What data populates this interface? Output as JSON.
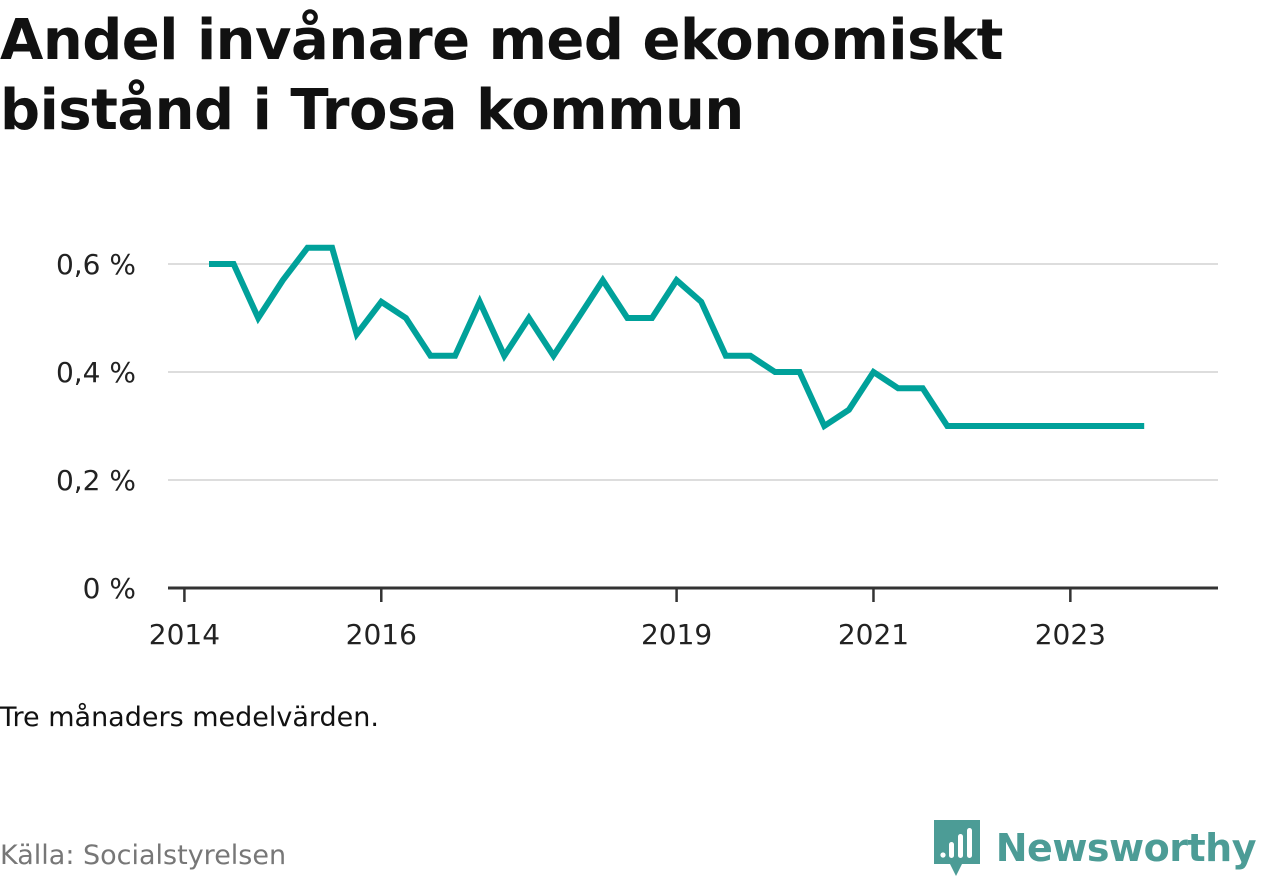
{
  "title": "Andel invånare med ekonomiskt bistånd i Trosa kommun",
  "note": "Tre månaders medelvärden.",
  "source": "Källa: Socialstyrelsen",
  "brand": {
    "name": "Newsworthy",
    "icon": "newsworthy-logo-icon",
    "color": "#4c9c96"
  },
  "chart_data": {
    "type": "line",
    "line_color": "#00a19a",
    "grid": true,
    "ylim": [
      0,
      0.7
    ],
    "y_ticks": [
      {
        "value": 0,
        "label": "0 %"
      },
      {
        "value": 0.2,
        "label": "0,2 %"
      },
      {
        "value": 0.4,
        "label": "0,4 %"
      },
      {
        "value": 0.6,
        "label": "0,6 %"
      }
    ],
    "xlim": [
      "2013-11-01",
      "2024-07-01"
    ],
    "x_ticks": [
      {
        "value": "2014-01-01",
        "label": "2014"
      },
      {
        "value": "2016-01-01",
        "label": "2016"
      },
      {
        "value": "2019-01-01",
        "label": "2019"
      },
      {
        "value": "2021-01-01",
        "label": "2021"
      },
      {
        "value": "2023-01-01",
        "label": "2023"
      }
    ],
    "series": [
      {
        "x": [
          "2014-04",
          "2014-07",
          "2014-10",
          "2015-01",
          "2015-04",
          "2015-07",
          "2015-10",
          "2016-01",
          "2016-04",
          "2016-07",
          "2016-10",
          "2017-01",
          "2017-04",
          "2017-07",
          "2017-10",
          "2018-01",
          "2018-04",
          "2018-07",
          "2018-10",
          "2019-01",
          "2019-04",
          "2019-07",
          "2019-10",
          "2020-01",
          "2020-04",
          "2020-07",
          "2020-10",
          "2021-01",
          "2021-04",
          "2021-07",
          "2021-10",
          "2022-01",
          "2022-04",
          "2022-07",
          "2022-10",
          "2023-01",
          "2023-04",
          "2023-07",
          "2023-10"
        ],
        "values": [
          0.6,
          0.6,
          0.5,
          0.57,
          0.63,
          0.63,
          0.47,
          0.53,
          0.5,
          0.43,
          0.43,
          0.53,
          0.43,
          0.5,
          0.43,
          0.5,
          0.57,
          0.5,
          0.5,
          0.57,
          0.53,
          0.43,
          0.43,
          0.4,
          0.4,
          0.3,
          0.33,
          0.4,
          0.37,
          0.37,
          0.3,
          0.3,
          0.3,
          0.3,
          0.3,
          0.3,
          0.3,
          0.3,
          0.3
        ]
      }
    ]
  }
}
